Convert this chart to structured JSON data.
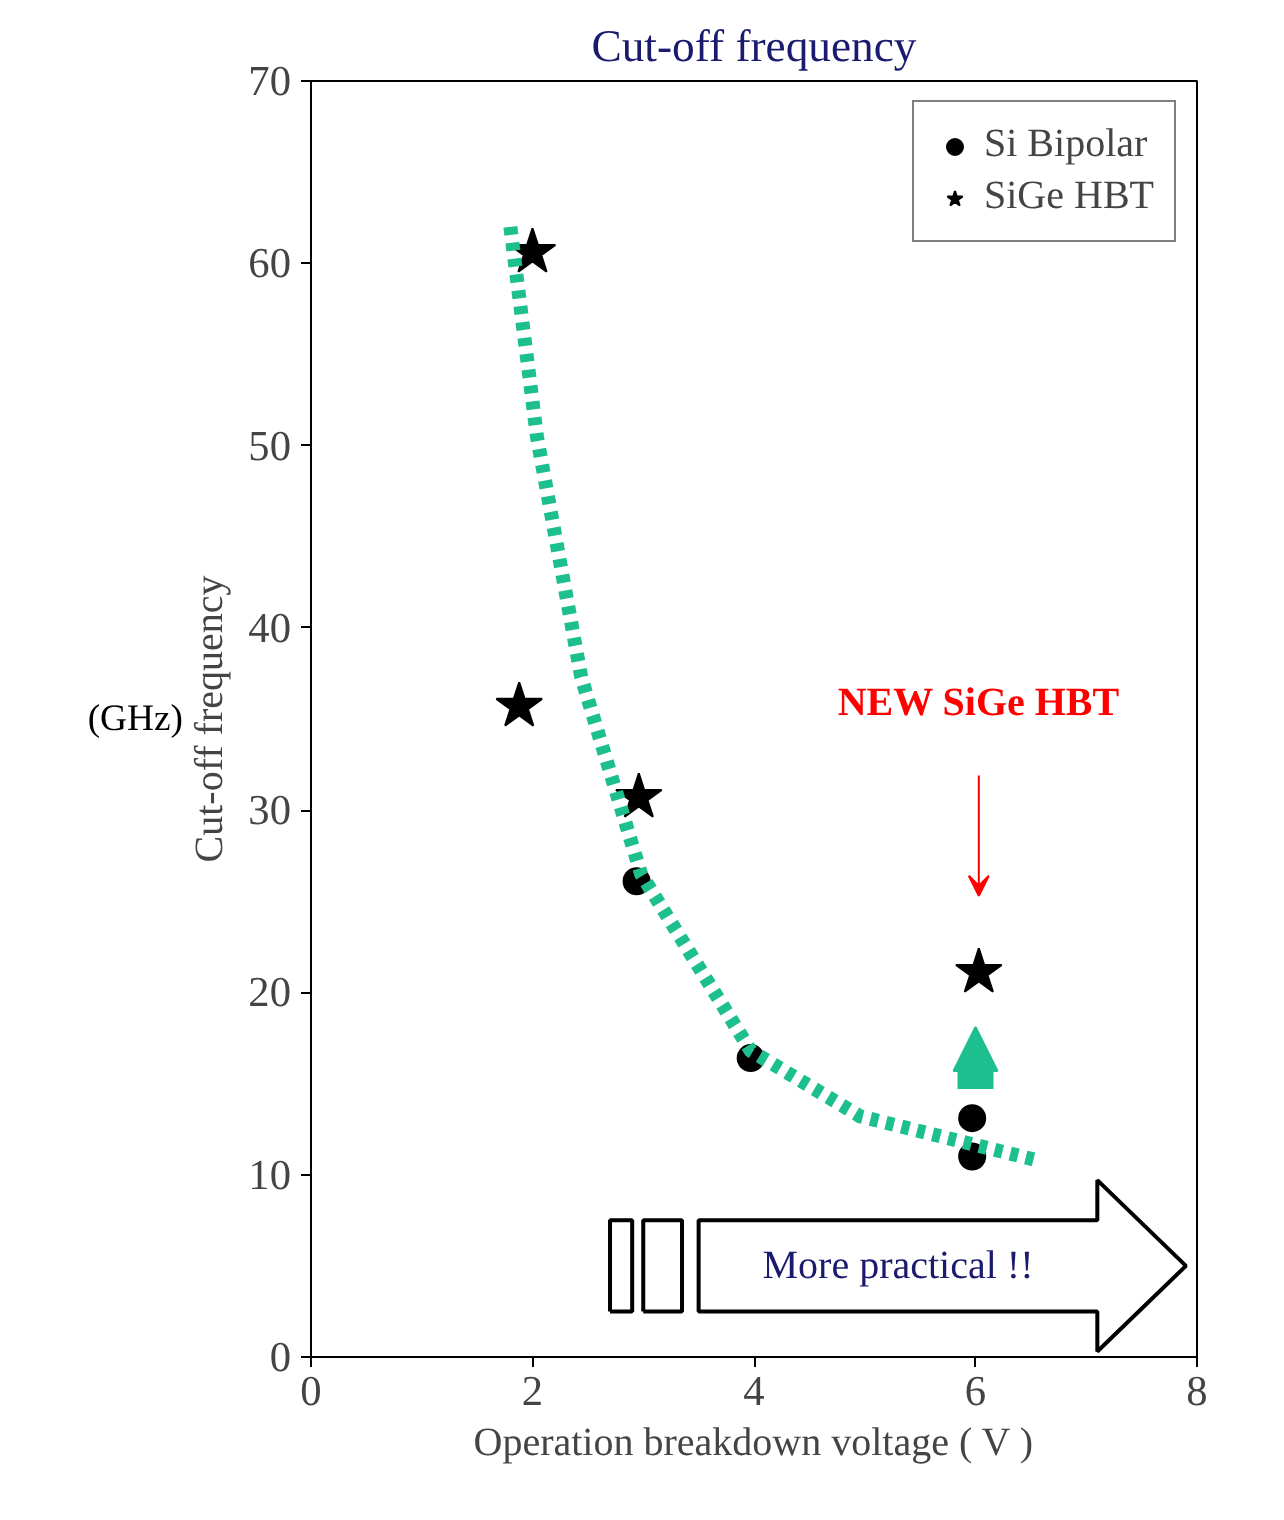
{
  "chart_data": {
    "type": "scatter",
    "title": "Cut-off frequency",
    "xlabel": "Operation breakdown voltage ( V )",
    "ylabel": "Cut-off frequency",
    "series": [
      {
        "name": "Si Bipolar",
        "color": "#000000",
        "marker": "circle",
        "x": [
          2.94,
          3.97,
          5.97,
          5.97
        ],
        "values": [
          26.1,
          16.4,
          13.1,
          11.0
        ]
      },
      {
        "name": "SiGe HBT",
        "color": "#000000",
        "marker": "star",
        "x": [
          2.0,
          1.88,
          2.96,
          6.03
        ],
        "values": [
          60.6,
          35.7,
          30.7,
          21.1
        ]
      },
      {
        "type": "line",
        "color": "#1dbf8f",
        "line_style": "dotted",
        "x": [
          1.8,
          2.04,
          2.44,
          2.98,
          3.97,
          4.96,
          6.55
        ],
        "values": [
          62,
          50.5,
          37.3,
          26.5,
          16.8,
          13.2,
          10.8
        ]
      }
    ],
    "annotations": [
      "(GHz)",
      "NEW SiGe HBT",
      "More practical !!"
    ],
    "xlim": [
      0,
      8
    ],
    "ylim": [
      0,
      70
    ],
    "xticks": [
      0,
      2,
      4,
      6,
      8
    ],
    "yticks": [
      0,
      10,
      20,
      30,
      40,
      50,
      60,
      70
    ],
    "grid": false,
    "legend": "top right"
  }
}
